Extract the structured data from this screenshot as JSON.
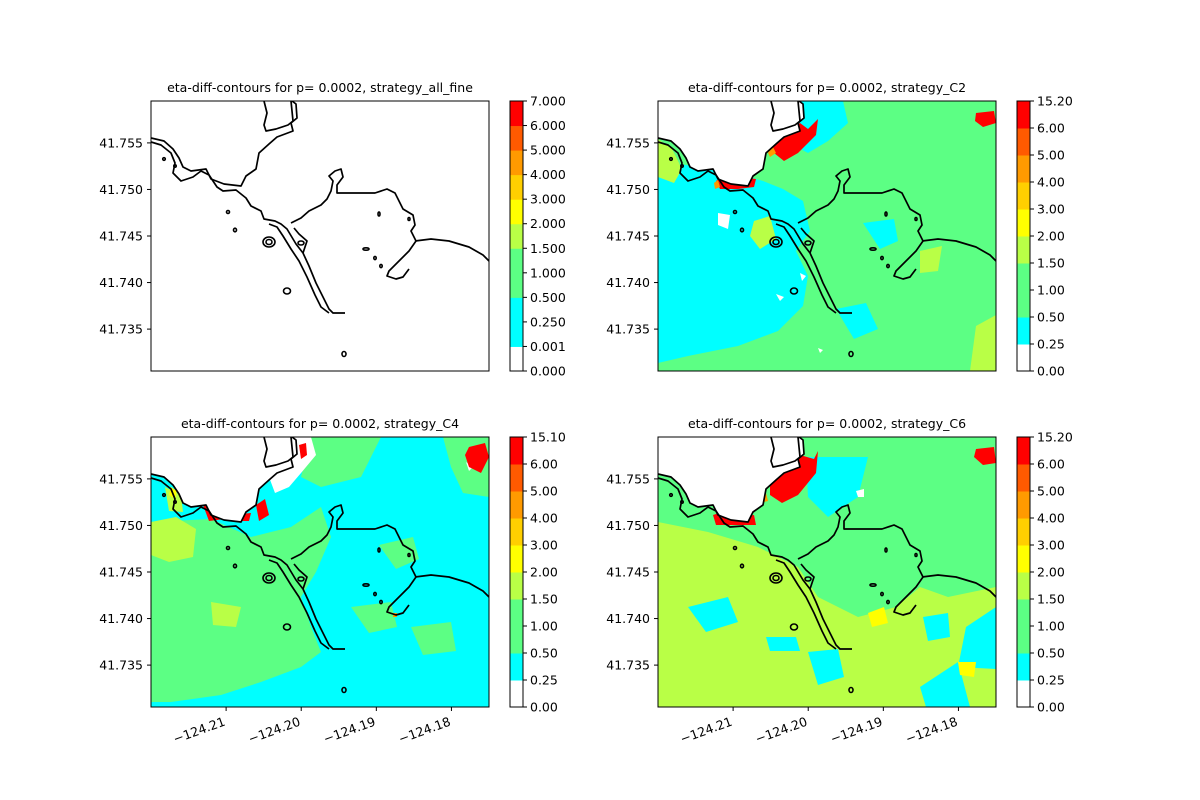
{
  "colors": {
    "levels": [
      "#ffffff",
      "#00ffff",
      "#5cff84",
      "#b9ff46",
      "#ffff00",
      "#ffcf00",
      "#ff9a00",
      "#ff5a00",
      "#ff0000"
    ],
    "coast": "#000000"
  },
  "chart_data": [
    {
      "type": "heatmap",
      "panel": "top-left",
      "title": "eta-diff-contours for p= 0.0002, strategy_all_fine",
      "ylim": [
        41.7305,
        41.7595
      ],
      "yticks": [
        "41.735",
        "41.740",
        "41.745",
        "41.750",
        "41.755"
      ],
      "xticks": [],
      "colorbar_ticks": [
        "0.000",
        "0.001",
        "0.250",
        "0.500",
        "1.000",
        "1.500",
        "2.000",
        "3.000",
        "4.000",
        "5.000",
        "6.000",
        "7.000"
      ],
      "field": "blank",
      "grid": false
    },
    {
      "type": "heatmap",
      "panel": "top-right",
      "title": "eta-diff-contours for p= 0.0002, strategy_C2",
      "ylim": [
        41.7305,
        41.7595
      ],
      "yticks": [
        "41.735",
        "41.740",
        "41.745",
        "41.750",
        "41.755"
      ],
      "xticks": [],
      "colorbar_ticks": [
        "0.00",
        "0.25",
        "0.50",
        "1.00",
        "1.50",
        "2.00",
        "3.00",
        "4.00",
        "5.00",
        "6.00",
        "15.20"
      ],
      "field": "c2",
      "grid": false
    },
    {
      "type": "heatmap",
      "panel": "bottom-left",
      "title": "eta-diff-contours for p= 0.0002, strategy_C4",
      "xlim": [
        -124.22,
        -124.175
      ],
      "ylim": [
        41.7305,
        41.7595
      ],
      "yticks": [
        "41.735",
        "41.740",
        "41.745",
        "41.750",
        "41.755"
      ],
      "xticks": [
        "−124.21",
        "−124.20",
        "−124.19",
        "−124.18"
      ],
      "colorbar_ticks": [
        "0.00",
        "0.25",
        "0.50",
        "1.00",
        "1.50",
        "2.00",
        "3.00",
        "4.00",
        "5.00",
        "6.00",
        "15.10"
      ],
      "field": "c4",
      "grid": false
    },
    {
      "type": "heatmap",
      "panel": "bottom-right",
      "title": "eta-diff-contours for p= 0.0002, strategy_C6",
      "xlim": [
        -124.22,
        -124.175
      ],
      "ylim": [
        41.7305,
        41.7595
      ],
      "yticks": [
        "41.735",
        "41.740",
        "41.745",
        "41.750",
        "41.755"
      ],
      "xticks": [
        "−124.21",
        "−124.20",
        "−124.19",
        "−124.18"
      ],
      "colorbar_ticks": [
        "0.00",
        "0.25",
        "0.50",
        "1.00",
        "1.50",
        "2.00",
        "3.00",
        "4.00",
        "5.00",
        "6.00",
        "15.20"
      ],
      "field": "c6",
      "grid": false
    }
  ]
}
